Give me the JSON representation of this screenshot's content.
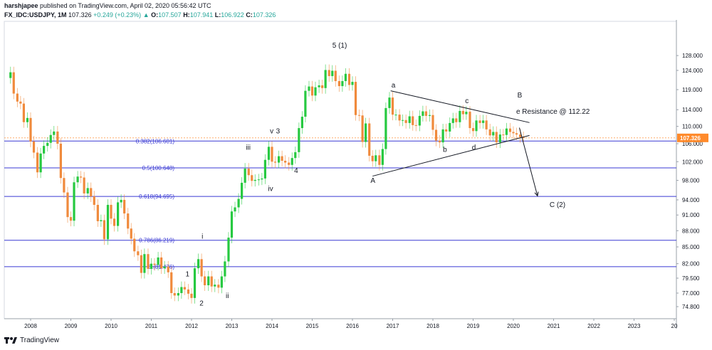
{
  "header": {
    "author": "harshjapee",
    "published": "published on TradingView.com, April 02, 2020 05:56:42 UTC",
    "symbol": "FX_IDC:USDJPY, 1M",
    "last": "107.326",
    "change": "+0.249 (+0.23%)",
    "o_label": "O:",
    "o": "107.507",
    "h_label": "H:",
    "h": "107.941",
    "l_label": "L:",
    "l": "106.922",
    "c_label": "C:",
    "c": "107.326"
  },
  "footer": {
    "brand": "TradingView"
  },
  "colors": {
    "up": "#26c940",
    "down": "#f08a3c",
    "fib": "#3a3ad4",
    "price": "#ff8a2b",
    "trend": "#131722"
  },
  "chart_data": {
    "type": "candlestick",
    "y_axis": {
      "ticks": [
        "128.000",
        "124.000",
        "119.000",
        "114.000",
        "110.000",
        "106.000",
        "102.000",
        "98.000",
        "94.000",
        "91.000",
        "88.000",
        "85.000",
        "82.000",
        "79.500",
        "77.000",
        "74.800"
      ],
      "scale": "log",
      "current_price": "107.326"
    },
    "x_axis": {
      "ticks": [
        "2008",
        "2009",
        "2010",
        "2011",
        "2012",
        "2013",
        "2014",
        "2015",
        "2016",
        "2017",
        "2018",
        "2019",
        "2020",
        "2021",
        "2022",
        "2023",
        "20"
      ]
    },
    "fib_levels": [
      {
        "label": "0.382(106.601)",
        "price": 106.601
      },
      {
        "label": "0.5(100.648)",
        "price": 100.648
      },
      {
        "label": "0.618(94.695)",
        "price": 94.695
      },
      {
        "label": "0.786(86.219)",
        "price": 86.219
      },
      {
        "label": "0.(81.476)",
        "price": 81.476
      }
    ],
    "wave_labels": [
      {
        "text": "5 (1)",
        "date": 2015.5,
        "price": 130.2
      },
      {
        "text": "1",
        "date": 2011.85,
        "price": 79.8
      },
      {
        "text": "2",
        "date": 2012.2,
        "price": 75.0
      },
      {
        "text": "i",
        "date": 2012.25,
        "price": 86.5
      },
      {
        "text": "ii",
        "date": 2012.85,
        "price": 76.2
      },
      {
        "text": "iii",
        "date": 2013.35,
        "price": 104.6
      },
      {
        "text": "iv",
        "date": 2013.9,
        "price": 95.8
      },
      {
        "text": "v",
        "date": 2013.95,
        "price": 108.4
      },
      {
        "text": "3",
        "date": 2014.1,
        "price": 108.4
      },
      {
        "text": "4",
        "date": 2014.55,
        "price": 99.6
      },
      {
        "text": "a",
        "date": 2016.97,
        "price": 119.5
      },
      {
        "text": "b",
        "date": 2018.25,
        "price": 104.2
      },
      {
        "text": "c",
        "date": 2018.8,
        "price": 115.6
      },
      {
        "text": "d",
        "date": 2018.97,
        "price": 104.6
      },
      {
        "text": "A",
        "date": 2016.45,
        "price": 97.5
      },
      {
        "text": "B",
        "date": 2020.1,
        "price": 117.0
      },
      {
        "text": "e Resistance @ 112.22",
        "date": 2020.07,
        "price": 113.0
      },
      {
        "text": "C (2)",
        "date": 2020.9,
        "price": 92.6
      }
    ],
    "trend_lines": [
      {
        "from": [
          2016.95,
          118.7
        ],
        "to": [
          2020.4,
          110.9
        ]
      },
      {
        "from": [
          2016.5,
          98.9
        ],
        "to": [
          2020.4,
          107.9
        ]
      },
      {
        "from": [
          2020.15,
          109.7
        ],
        "to": [
          2020.6,
          94.8
        ]
      }
    ],
    "candles": [
      {
        "t": 2007.5,
        "o": 122.0,
        "c": 123.5
      },
      {
        "t": 2007.58,
        "o": 123.5,
        "c": 118.0
      },
      {
        "t": 2007.67,
        "o": 118.0,
        "c": 116.0
      },
      {
        "t": 2007.75,
        "o": 116.0,
        "c": 115.5
      },
      {
        "t": 2007.83,
        "o": 115.5,
        "c": 111.0
      },
      {
        "t": 2007.92,
        "o": 111.0,
        "c": 112.0
      },
      {
        "t": 2008.0,
        "o": 112.0,
        "c": 106.5
      },
      {
        "t": 2008.08,
        "o": 106.5,
        "c": 104.0
      },
      {
        "t": 2008.17,
        "o": 104.0,
        "c": 99.7
      },
      {
        "t": 2008.25,
        "o": 99.7,
        "c": 103.8
      },
      {
        "t": 2008.33,
        "o": 103.8,
        "c": 105.5
      },
      {
        "t": 2008.42,
        "o": 105.5,
        "c": 106.2
      },
      {
        "t": 2008.5,
        "o": 106.2,
        "c": 108.0
      },
      {
        "t": 2008.58,
        "o": 108.0,
        "c": 108.8
      },
      {
        "t": 2008.67,
        "o": 108.8,
        "c": 106.0
      },
      {
        "t": 2008.75,
        "o": 106.0,
        "c": 98.5
      },
      {
        "t": 2008.83,
        "o": 98.5,
        "c": 95.5
      },
      {
        "t": 2008.92,
        "o": 95.5,
        "c": 90.6
      },
      {
        "t": 2009.0,
        "o": 90.6,
        "c": 89.9
      },
      {
        "t": 2009.08,
        "o": 89.9,
        "c": 97.6
      },
      {
        "t": 2009.17,
        "o": 97.6,
        "c": 98.8
      },
      {
        "t": 2009.25,
        "o": 98.8,
        "c": 98.6
      },
      {
        "t": 2009.33,
        "o": 98.6,
        "c": 95.3
      },
      {
        "t": 2009.42,
        "o": 95.3,
        "c": 96.4
      },
      {
        "t": 2009.5,
        "o": 96.4,
        "c": 94.7
      },
      {
        "t": 2009.58,
        "o": 94.7,
        "c": 93.0
      },
      {
        "t": 2009.67,
        "o": 93.0,
        "c": 89.8
      },
      {
        "t": 2009.75,
        "o": 89.8,
        "c": 90.0
      },
      {
        "t": 2009.83,
        "o": 90.0,
        "c": 86.4
      },
      {
        "t": 2009.92,
        "o": 86.4,
        "c": 93.0
      },
      {
        "t": 2010.0,
        "o": 93.0,
        "c": 90.3
      },
      {
        "t": 2010.08,
        "o": 90.3,
        "c": 88.9
      },
      {
        "t": 2010.17,
        "o": 88.9,
        "c": 93.5
      },
      {
        "t": 2010.25,
        "o": 93.5,
        "c": 94.0
      },
      {
        "t": 2010.33,
        "o": 94.0,
        "c": 91.3
      },
      {
        "t": 2010.42,
        "o": 91.3,
        "c": 88.4
      },
      {
        "t": 2010.5,
        "o": 88.4,
        "c": 86.5
      },
      {
        "t": 2010.58,
        "o": 86.5,
        "c": 84.2
      },
      {
        "t": 2010.67,
        "o": 84.2,
        "c": 83.5
      },
      {
        "t": 2010.75,
        "o": 83.5,
        "c": 80.4
      },
      {
        "t": 2010.83,
        "o": 80.4,
        "c": 83.7
      },
      {
        "t": 2010.92,
        "o": 83.7,
        "c": 81.1
      },
      {
        "t": 2011.0,
        "o": 81.1,
        "c": 82.0
      },
      {
        "t": 2011.08,
        "o": 82.0,
        "c": 81.8
      },
      {
        "t": 2011.17,
        "o": 81.8,
        "c": 83.1
      },
      {
        "t": 2011.25,
        "o": 83.1,
        "c": 81.2
      },
      {
        "t": 2011.33,
        "o": 81.2,
        "c": 81.5
      },
      {
        "t": 2011.42,
        "o": 81.5,
        "c": 80.5
      },
      {
        "t": 2011.5,
        "o": 80.5,
        "c": 77.0
      },
      {
        "t": 2011.58,
        "o": 77.0,
        "c": 76.6
      },
      {
        "t": 2011.67,
        "o": 76.6,
        "c": 77.0
      },
      {
        "t": 2011.75,
        "o": 77.0,
        "c": 78.0
      },
      {
        "t": 2011.83,
        "o": 78.0,
        "c": 77.6
      },
      {
        "t": 2011.92,
        "o": 77.6,
        "c": 76.9
      },
      {
        "t": 2012.0,
        "o": 76.9,
        "c": 76.2
      },
      {
        "t": 2012.08,
        "o": 76.2,
        "c": 81.2
      },
      {
        "t": 2012.17,
        "o": 81.2,
        "c": 82.8
      },
      {
        "t": 2012.25,
        "o": 82.8,
        "c": 79.8
      },
      {
        "t": 2012.33,
        "o": 79.8,
        "c": 78.3
      },
      {
        "t": 2012.42,
        "o": 78.3,
        "c": 79.8
      },
      {
        "t": 2012.5,
        "o": 79.8,
        "c": 78.1
      },
      {
        "t": 2012.58,
        "o": 78.1,
        "c": 78.4
      },
      {
        "t": 2012.67,
        "o": 78.4,
        "c": 77.9
      },
      {
        "t": 2012.75,
        "o": 77.9,
        "c": 79.8
      },
      {
        "t": 2012.83,
        "o": 79.8,
        "c": 82.4
      },
      {
        "t": 2012.92,
        "o": 82.4,
        "c": 86.7
      },
      {
        "t": 2013.0,
        "o": 86.7,
        "c": 91.7
      },
      {
        "t": 2013.08,
        "o": 91.7,
        "c": 92.5
      },
      {
        "t": 2013.17,
        "o": 92.5,
        "c": 94.2
      },
      {
        "t": 2013.25,
        "o": 94.2,
        "c": 97.5
      },
      {
        "t": 2013.33,
        "o": 97.5,
        "c": 100.5
      },
      {
        "t": 2013.42,
        "o": 100.5,
        "c": 99.1
      },
      {
        "t": 2013.5,
        "o": 99.1,
        "c": 97.9
      },
      {
        "t": 2013.58,
        "o": 97.9,
        "c": 98.1
      },
      {
        "t": 2013.67,
        "o": 98.1,
        "c": 98.2
      },
      {
        "t": 2013.75,
        "o": 98.2,
        "c": 98.4
      },
      {
        "t": 2013.83,
        "o": 98.4,
        "c": 102.4
      },
      {
        "t": 2013.92,
        "o": 102.4,
        "c": 105.3
      },
      {
        "t": 2014.0,
        "o": 105.3,
        "c": 102.0
      },
      {
        "t": 2014.08,
        "o": 102.0,
        "c": 101.8
      },
      {
        "t": 2014.17,
        "o": 101.8,
        "c": 103.2
      },
      {
        "t": 2014.25,
        "o": 103.2,
        "c": 102.2
      },
      {
        "t": 2014.33,
        "o": 102.2,
        "c": 101.8
      },
      {
        "t": 2014.42,
        "o": 101.8,
        "c": 101.3
      },
      {
        "t": 2014.5,
        "o": 101.3,
        "c": 102.8
      },
      {
        "t": 2014.58,
        "o": 102.8,
        "c": 104.1
      },
      {
        "t": 2014.67,
        "o": 104.1,
        "c": 109.6
      },
      {
        "t": 2014.75,
        "o": 109.6,
        "c": 112.3
      },
      {
        "t": 2014.83,
        "o": 112.3,
        "c": 118.7
      },
      {
        "t": 2014.92,
        "o": 118.7,
        "c": 119.8
      },
      {
        "t": 2015.0,
        "o": 119.8,
        "c": 117.5
      },
      {
        "t": 2015.08,
        "o": 117.5,
        "c": 119.6
      },
      {
        "t": 2015.17,
        "o": 119.6,
        "c": 120.1
      },
      {
        "t": 2015.25,
        "o": 120.1,
        "c": 119.4
      },
      {
        "t": 2015.33,
        "o": 119.4,
        "c": 124.1
      },
      {
        "t": 2015.42,
        "o": 124.1,
        "c": 122.5
      },
      {
        "t": 2015.5,
        "o": 122.5,
        "c": 123.9
      },
      {
        "t": 2015.58,
        "o": 123.9,
        "c": 121.2
      },
      {
        "t": 2015.67,
        "o": 121.2,
        "c": 119.9
      },
      {
        "t": 2015.75,
        "o": 119.9,
        "c": 121.2
      },
      {
        "t": 2015.83,
        "o": 121.2,
        "c": 123.1
      },
      {
        "t": 2015.92,
        "o": 123.1,
        "c": 120.2
      },
      {
        "t": 2016.0,
        "o": 120.2,
        "c": 121.0
      },
      {
        "t": 2016.08,
        "o": 121.0,
        "c": 112.7
      },
      {
        "t": 2016.17,
        "o": 112.7,
        "c": 112.6
      },
      {
        "t": 2016.25,
        "o": 112.6,
        "c": 106.4
      },
      {
        "t": 2016.33,
        "o": 106.4,
        "c": 110.7
      },
      {
        "t": 2016.42,
        "o": 110.7,
        "c": 103.3
      },
      {
        "t": 2016.5,
        "o": 103.3,
        "c": 102.1
      },
      {
        "t": 2016.58,
        "o": 102.1,
        "c": 103.4
      },
      {
        "t": 2016.67,
        "o": 103.4,
        "c": 101.3
      },
      {
        "t": 2016.75,
        "o": 101.3,
        "c": 104.8
      },
      {
        "t": 2016.83,
        "o": 104.8,
        "c": 114.4
      },
      {
        "t": 2016.92,
        "o": 114.4,
        "c": 117.0
      },
      {
        "t": 2017.0,
        "o": 117.0,
        "c": 112.8
      },
      {
        "t": 2017.08,
        "o": 112.8,
        "c": 112.8
      },
      {
        "t": 2017.17,
        "o": 112.8,
        "c": 111.4
      },
      {
        "t": 2017.25,
        "o": 111.4,
        "c": 111.5
      },
      {
        "t": 2017.33,
        "o": 111.5,
        "c": 110.8
      },
      {
        "t": 2017.42,
        "o": 110.8,
        "c": 112.4
      },
      {
        "t": 2017.5,
        "o": 112.4,
        "c": 110.3
      },
      {
        "t": 2017.58,
        "o": 110.3,
        "c": 110.2
      },
      {
        "t": 2017.67,
        "o": 110.2,
        "c": 112.5
      },
      {
        "t": 2017.75,
        "o": 112.5,
        "c": 113.6
      },
      {
        "t": 2017.83,
        "o": 113.6,
        "c": 112.5
      },
      {
        "t": 2017.92,
        "o": 112.5,
        "c": 112.7
      },
      {
        "t": 2018.0,
        "o": 112.7,
        "c": 109.2
      },
      {
        "t": 2018.08,
        "o": 109.2,
        "c": 106.7
      },
      {
        "t": 2018.17,
        "o": 106.7,
        "c": 106.3
      },
      {
        "t": 2018.25,
        "o": 106.3,
        "c": 109.3
      },
      {
        "t": 2018.33,
        "o": 109.3,
        "c": 108.8
      },
      {
        "t": 2018.42,
        "o": 108.8,
        "c": 110.8
      },
      {
        "t": 2018.5,
        "o": 110.8,
        "c": 111.9
      },
      {
        "t": 2018.58,
        "o": 111.9,
        "c": 111.0
      },
      {
        "t": 2018.67,
        "o": 111.0,
        "c": 113.7
      },
      {
        "t": 2018.75,
        "o": 113.7,
        "c": 112.9
      },
      {
        "t": 2018.83,
        "o": 112.9,
        "c": 113.5
      },
      {
        "t": 2018.92,
        "o": 113.5,
        "c": 109.6
      },
      {
        "t": 2019.0,
        "o": 109.6,
        "c": 108.9
      },
      {
        "t": 2019.08,
        "o": 108.9,
        "c": 111.4
      },
      {
        "t": 2019.17,
        "o": 111.4,
        "c": 110.8
      },
      {
        "t": 2019.25,
        "o": 110.8,
        "c": 111.4
      },
      {
        "t": 2019.33,
        "o": 111.4,
        "c": 109.3
      },
      {
        "t": 2019.42,
        "o": 109.3,
        "c": 107.9
      },
      {
        "t": 2019.5,
        "o": 107.9,
        "c": 108.7
      },
      {
        "t": 2019.58,
        "o": 108.7,
        "c": 106.3
      },
      {
        "t": 2019.67,
        "o": 106.3,
        "c": 108.1
      },
      {
        "t": 2019.75,
        "o": 108.1,
        "c": 108.0
      },
      {
        "t": 2019.83,
        "o": 108.0,
        "c": 109.5
      },
      {
        "t": 2019.92,
        "o": 109.5,
        "c": 108.7
      },
      {
        "t": 2020.0,
        "o": 108.7,
        "c": 108.4
      },
      {
        "t": 2020.08,
        "o": 108.4,
        "c": 108.1
      },
      {
        "t": 2020.17,
        "o": 108.1,
        "c": 107.5
      },
      {
        "t": 2020.25,
        "o": 107.5,
        "c": 107.3
      }
    ]
  }
}
